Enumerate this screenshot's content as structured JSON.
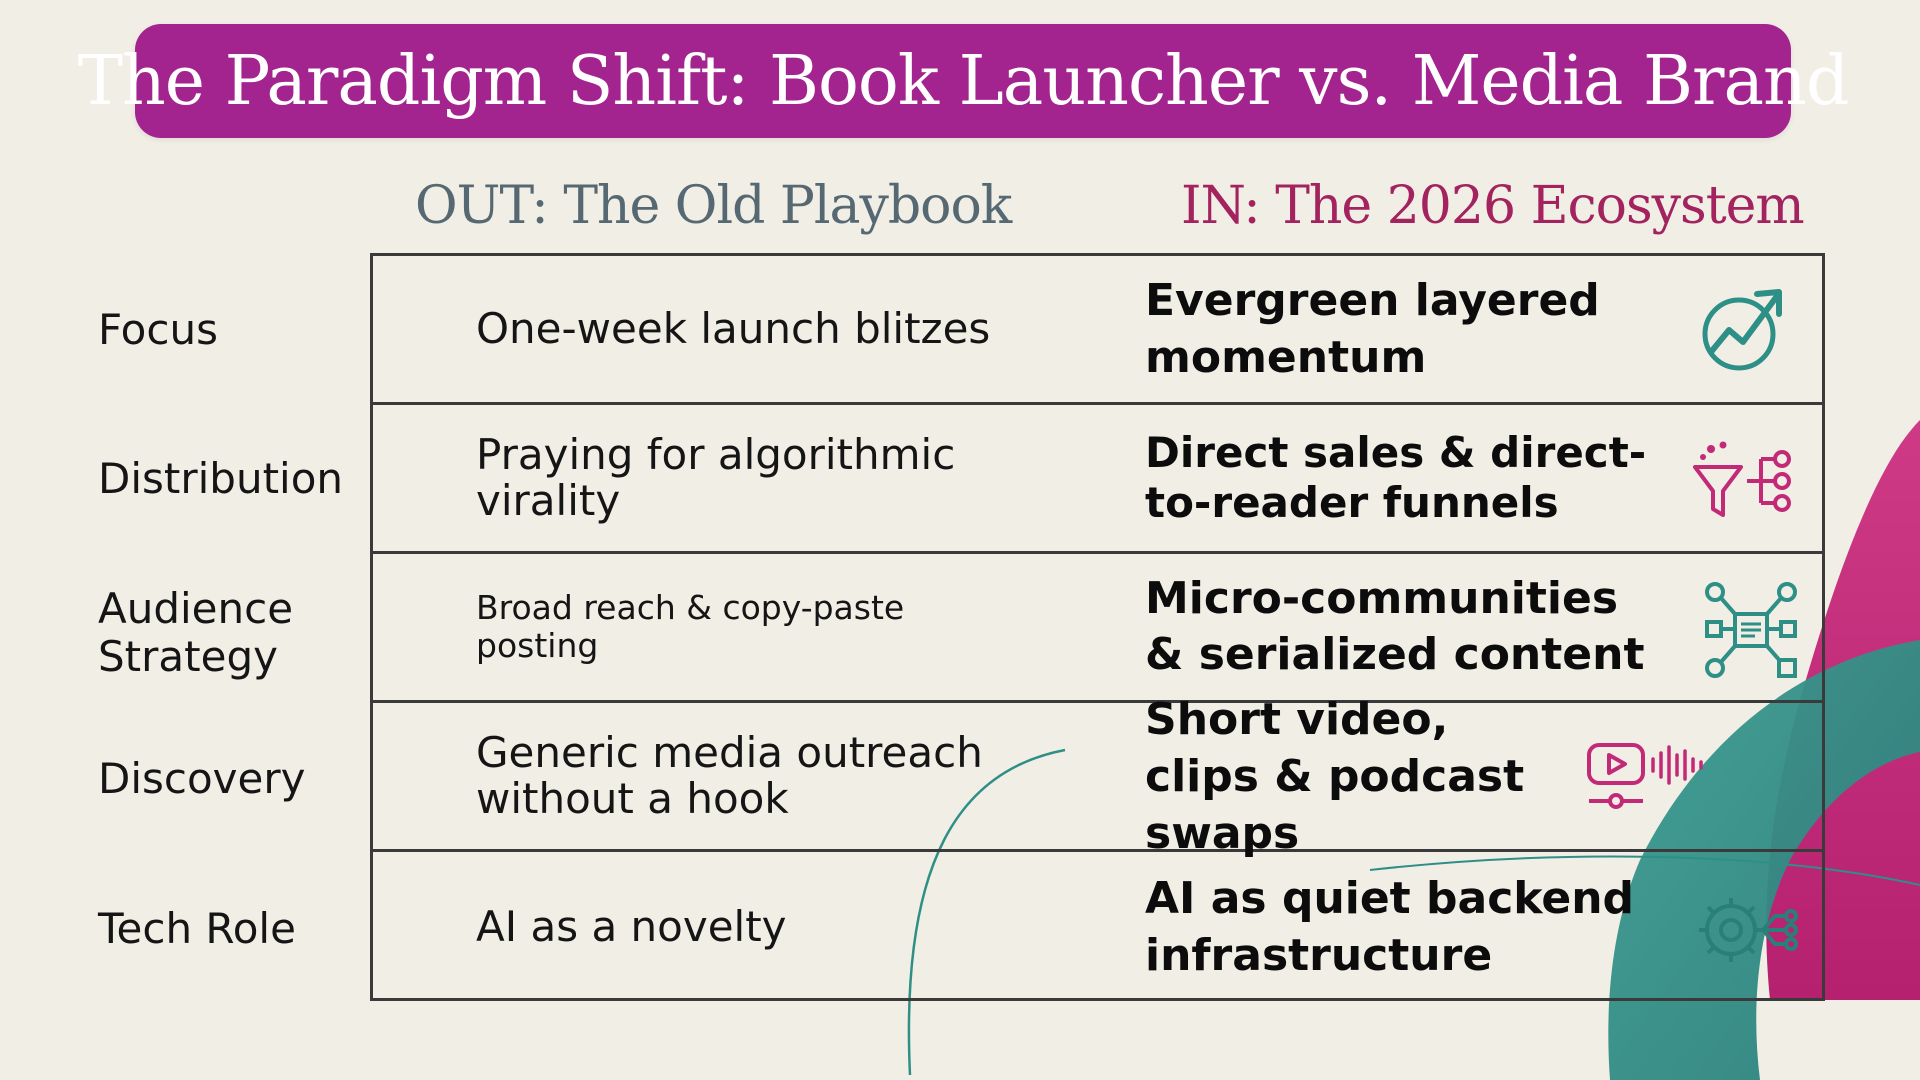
{
  "title": "The Paradigm Shift: Book Launcher vs. Media Brand",
  "columns": {
    "out": "OUT: The Old Playbook",
    "in": "IN: The 2026 Ecosystem"
  },
  "rows": [
    {
      "label": "Focus",
      "old": "One-week launch blitzes",
      "new": "Evergreen layered momentum",
      "icon": "growth-chart-icon"
    },
    {
      "label": "Distribution",
      "old": "Praying for algorithmic virality",
      "new": "Direct sales & direct-to-reader funnels",
      "icon": "funnel-icon"
    },
    {
      "label": "Audience Strategy",
      "old": "Broad reach & copy-paste posting",
      "new": "Micro-communities & serialized content",
      "icon": "network-hub-icon"
    },
    {
      "label": "Discovery",
      "old": "Generic media outreach without a hook",
      "new": "Short video, clips & podcast swaps",
      "icon": "video-audio-icon"
    },
    {
      "label": "Tech Role",
      "old": "AI as a novelty",
      "new": "AI as quiet backend infrastructure",
      "icon": "gear-circuit-icon"
    }
  ],
  "colors": {
    "banner": "#a3238f",
    "out_heading": "#566872",
    "in_heading": "#a3235f",
    "teal": "#2e8f86",
    "magenta": "#c22a78"
  }
}
